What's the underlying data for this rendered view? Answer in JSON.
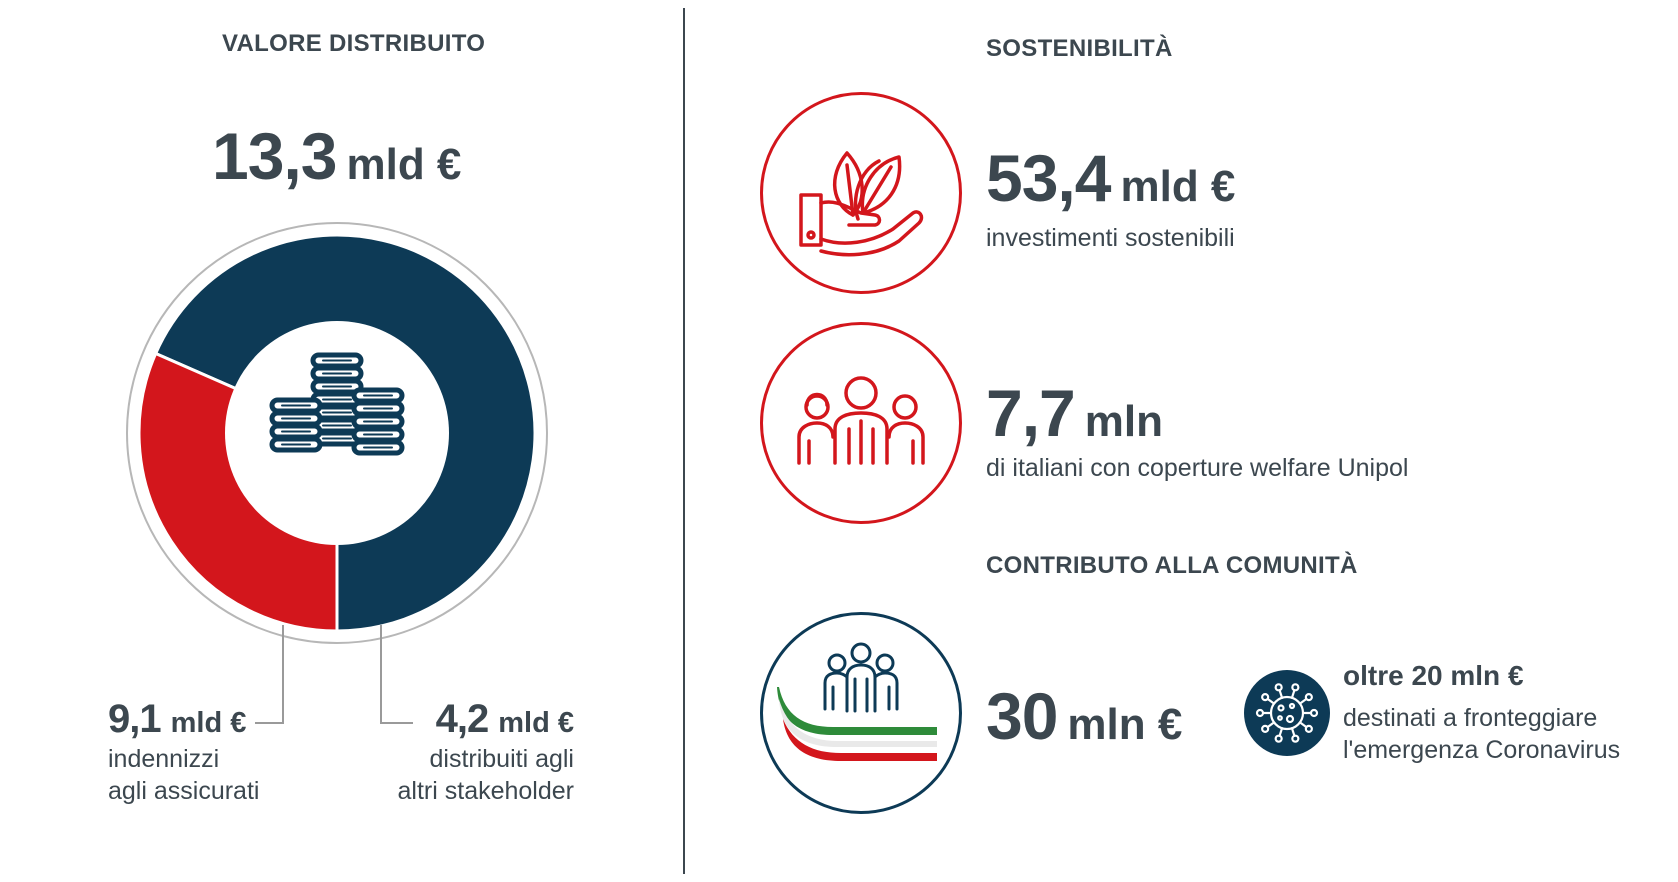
{
  "left": {
    "heading": "VALORE DISTRIBUITO",
    "total": {
      "value": "13,3",
      "unit": "mld €"
    },
    "segments": [
      {
        "value": "9,1",
        "unit": "mld €",
        "label_line1": "indennizzi",
        "label_line2": "agli assicurati"
      },
      {
        "value": "4,2",
        "unit": "mld €",
        "label_line1": "distribuiti agli",
        "label_line2": "altri stakeholder"
      }
    ]
  },
  "right": {
    "heading_sustainability": "SOSTENIBILITÀ",
    "item1": {
      "value": "53,4",
      "unit": "mld €",
      "desc": "investimenti sostenibili",
      "icon": "plant-in-hand-icon"
    },
    "item2": {
      "value": "7,7",
      "unit": "mln",
      "desc": "di italiani con coperture welfare Unipol",
      "icon": "people-group-icon"
    },
    "heading_community": "CONTRIBUTO ALLA COMUNITÀ",
    "item3": {
      "value": "30",
      "unit": "mln €",
      "icon": "community-italy-icon"
    },
    "note": {
      "highlight": "oltre 20 mln €",
      "line1": "destinati a fronteggiare",
      "line2": "l'emergenza Coronavirus",
      "icon": "virus-icon"
    }
  },
  "colors": {
    "navy": "#0d3a56",
    "red": "#d3161c",
    "text": "#3c474f",
    "green": "#2e8b3a"
  },
  "chart_data": {
    "type": "pie",
    "title": "VALORE DISTRIBUITO",
    "total": 13.3,
    "unit": "mld €",
    "categories": [
      "indennizzi agli assicurati",
      "distribuiti agli altri stakeholder"
    ],
    "values": [
      9.1,
      4.2
    ],
    "colors": [
      "#0d3a56",
      "#d3161c"
    ],
    "donut": true
  }
}
